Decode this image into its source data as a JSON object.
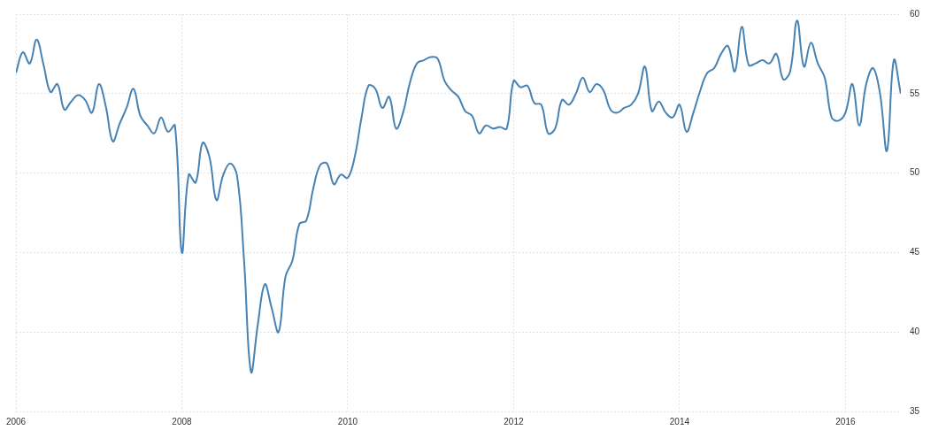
{
  "chart_data": {
    "type": "line",
    "categories": [
      "2006",
      null,
      null,
      null,
      null,
      null,
      null,
      null,
      null,
      null,
      null,
      null,
      null,
      null,
      null,
      null,
      null,
      null,
      null,
      null,
      null,
      null,
      null,
      null,
      "2008",
      null,
      null,
      null,
      null,
      null,
      null,
      null,
      null,
      null,
      null,
      null,
      null,
      null,
      null,
      null,
      null,
      null,
      null,
      null,
      null,
      null,
      null,
      null,
      "2010",
      null,
      null,
      null,
      null,
      null,
      null,
      null,
      null,
      null,
      null,
      null,
      null,
      null,
      null,
      null,
      null,
      null,
      null,
      null,
      null,
      null,
      null,
      null,
      "2012",
      null,
      null,
      null,
      null,
      null,
      null,
      null,
      null,
      null,
      null,
      null,
      null,
      null,
      null,
      null,
      null,
      null,
      null,
      null,
      null,
      null,
      null,
      null,
      "2014",
      null,
      null,
      null,
      null,
      null,
      null,
      null,
      null,
      null,
      null,
      null,
      null,
      null,
      null,
      null,
      null,
      null,
      null,
      null,
      null,
      null,
      null,
      null,
      "2016",
      null,
      null,
      null,
      null,
      null,
      null,
      null,
      null
    ],
    "values": [
      56.3,
      57.6,
      56.9,
      58.4,
      56.8,
      55.1,
      55.6,
      54.0,
      54.5,
      54.9,
      54.6,
      53.8,
      55.6,
      54.2,
      52.0,
      53.1,
      54.1,
      55.3,
      53.6,
      53.0,
      52.5,
      53.5,
      52.6,
      53.0,
      45.0,
      49.9,
      49.4,
      51.9,
      51.0,
      48.3,
      49.9,
      50.6,
      49.8,
      44.5,
      37.5,
      40.5,
      43.0,
      41.5,
      40.0,
      43.5,
      44.5,
      46.8,
      47.0,
      49.0,
      50.5,
      50.6,
      49.3,
      49.9,
      49.7,
      51.0,
      53.5,
      55.5,
      55.3,
      54.1,
      54.8,
      52.8,
      53.8,
      55.7,
      56.9,
      57.1,
      57.3,
      57.2,
      55.8,
      55.2,
      54.8,
      53.9,
      53.6,
      52.5,
      53.0,
      52.8,
      52.9,
      52.8,
      55.8,
      55.4,
      55.5,
      54.4,
      54.3,
      52.5,
      52.8,
      54.6,
      54.3,
      55.0,
      56.0,
      55.1,
      55.6,
      55.2,
      54.0,
      53.8,
      54.1,
      54.3,
      55.0,
      56.7,
      53.9,
      54.5,
      53.8,
      53.5,
      54.3,
      52.6,
      53.8,
      55.2,
      56.3,
      56.6,
      57.5,
      58.0,
      56.4,
      59.2,
      56.8,
      56.9,
      57.1,
      56.9,
      57.5,
      55.9,
      56.4,
      59.6,
      56.7,
      58.2,
      56.9,
      56.0,
      53.5,
      53.3,
      53.8,
      55.6,
      53.0,
      55.6,
      56.6,
      55.0,
      51.4,
      57.1,
      55.0
    ],
    "color": "#4682b4",
    "ylim": [
      35,
      60
    ],
    "yticks": [
      35,
      40,
      45,
      50,
      55,
      60
    ],
    "grid": true
  }
}
